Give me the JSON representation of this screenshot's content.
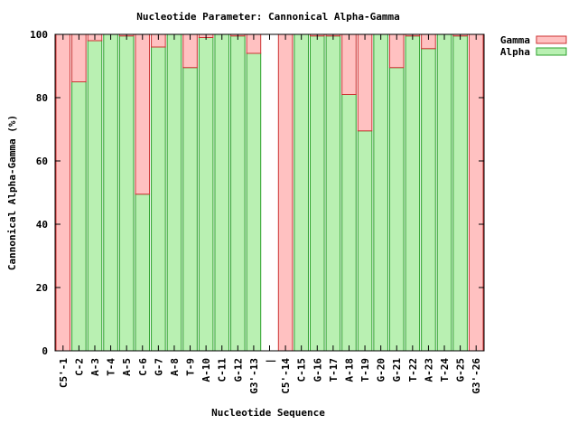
{
  "chart_data": {
    "type": "bar",
    "stacked": true,
    "title": "Nucleotide Parameter: Cannonical Alpha-Gamma",
    "xlabel": "Nucleotide Sequence",
    "ylabel": "Cannonical Alpha-Gamma (%)",
    "ylim": [
      0,
      100
    ],
    "yticks": [
      0,
      20,
      40,
      60,
      80,
      100
    ],
    "grid": false,
    "legend_position": "top-right",
    "categories": [
      "C5'-1",
      "C-2",
      "A-3",
      "T-4",
      "A-5",
      "C-6",
      "G-7",
      "A-8",
      "T-9",
      "A-10",
      "C-11",
      "G-12",
      "G3'-13",
      "|",
      "C5'-14",
      "C-15",
      "G-16",
      "T-17",
      "A-18",
      "T-19",
      "G-20",
      "G-21",
      "T-22",
      "A-23",
      "T-24",
      "G-25",
      "G3'-26"
    ],
    "series": [
      {
        "name": "Alpha",
        "color": "#b9f0b2",
        "edge": "#2ca02c",
        "values": [
          0,
          85,
          98,
          100,
          99.5,
          49.5,
          96,
          100,
          89.5,
          99,
          100,
          99.5,
          94,
          null,
          0,
          100,
          99.5,
          99.5,
          81,
          69.5,
          100,
          89.5,
          99.5,
          95.5,
          100,
          99.5,
          0
        ]
      },
      {
        "name": "Gamma",
        "color": "#ffc1c1",
        "edge": "#cc3333",
        "values": [
          100,
          15,
          2,
          0,
          0.5,
          50.5,
          4,
          0,
          10.5,
          1,
          0,
          0.5,
          6,
          null,
          100,
          0,
          0.5,
          0.5,
          19,
          30.5,
          0,
          10.5,
          0.5,
          4.5,
          0,
          0.5,
          100
        ]
      }
    ]
  }
}
